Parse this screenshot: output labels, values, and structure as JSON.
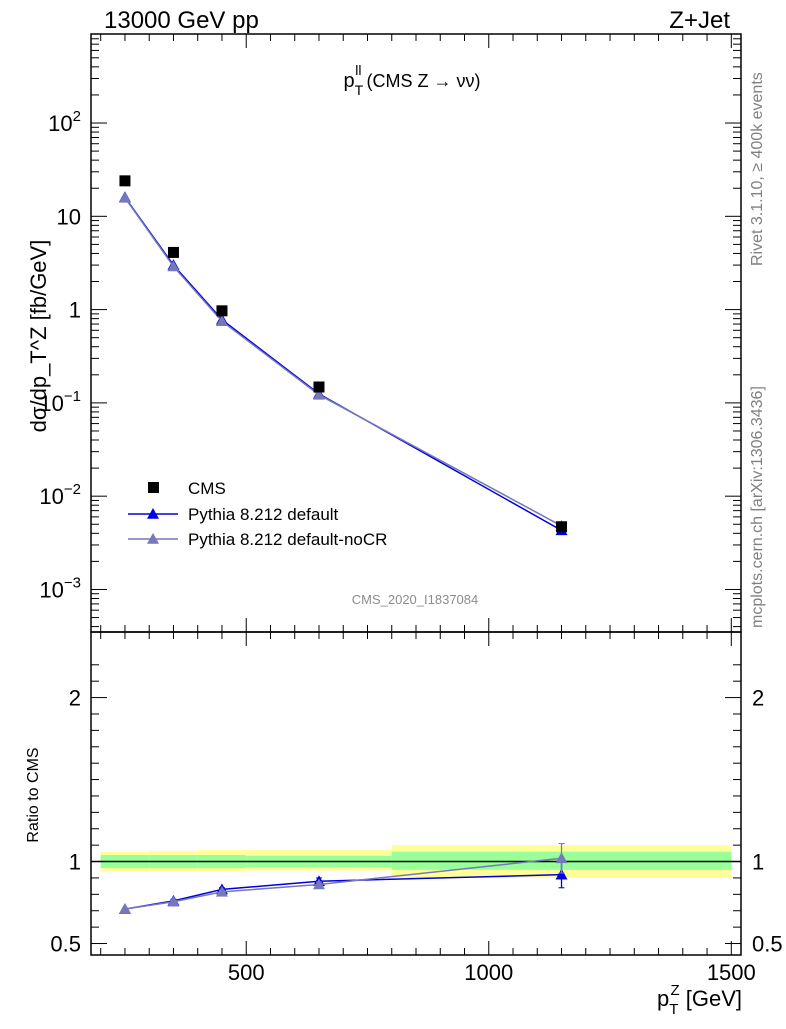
{
  "header": {
    "energy_label": "13000 GeV pp",
    "process_label": "Z+Jet"
  },
  "side_texts": {
    "rivet": "Rivet 3.1.10, ≥ 400k events",
    "mcplots": "mcplots.cern.ch [arXiv:1306.3436]"
  },
  "chart_data": [
    {
      "type": "line",
      "title": "p_T^ll (CMS Z → νν)",
      "title_main": "p",
      "title_sub": "T",
      "title_sup": "ll",
      "title_rest": " (CMS Z → νν)",
      "ylabel": "dσ/dp_T^Z [fb/GeV]",
      "yscale": "log",
      "ylim": [
        0.00035,
        900
      ],
      "xlim": [
        180,
        1520
      ],
      "y_tick_labels": [
        {
          "v": 0.001,
          "base": "10",
          "exp": "−3"
        },
        {
          "v": 0.01,
          "base": "10",
          "exp": "−2"
        },
        {
          "v": 0.1,
          "base": "10",
          "exp": "−1"
        },
        {
          "v": 1,
          "base": "1",
          "exp": ""
        },
        {
          "v": 10,
          "base": "10",
          "exp": ""
        },
        {
          "v": 100,
          "base": "10",
          "exp": "2"
        }
      ],
      "watermark": "CMS_2020_I1837084",
      "legend_position": "bottom-left",
      "series": [
        {
          "name": "CMS",
          "marker": "square",
          "color": "#000000",
          "x": [
            250,
            350,
            450,
            650,
            1150
          ],
          "y": [
            24,
            4.1,
            0.97,
            0.148,
            0.0047
          ]
        },
        {
          "name": "Pythia 8.212 default",
          "marker": "triangle",
          "color": "#0000dd",
          "x": [
            250,
            350,
            450,
            650,
            1150
          ],
          "y": [
            16,
            3.0,
            0.78,
            0.125,
            0.0043
          ]
        },
        {
          "name": "Pythia 8.212 default-noCR",
          "marker": "triangle",
          "color": "#7777bb",
          "x": [
            250,
            350,
            450,
            650,
            1150
          ],
          "y": [
            15.8,
            2.9,
            0.75,
            0.122,
            0.0048
          ]
        }
      ]
    },
    {
      "type": "line",
      "ylabel": "Ratio to CMS",
      "xlabel": "p_T^Z [GeV]",
      "xlabel_main": "p",
      "xlabel_sub": "T",
      "xlabel_sup": "Z",
      "xlabel_rest": " [GeV]",
      "xlim": [
        180,
        1520
      ],
      "ylim": [
        0.43,
        2.4
      ],
      "x_ticks": [
        500,
        1000,
        1500
      ],
      "y_ticks": [
        0.5,
        1,
        2
      ],
      "y_tick_labels": [
        "0.5",
        "1",
        "2"
      ],
      "uncertainty_bands": [
        {
          "x0": 200,
          "x1": 300,
          "stat": [
            0.96,
            1.04
          ],
          "total": [
            0.94,
            1.06
          ]
        },
        {
          "x0": 300,
          "x1": 400,
          "stat": [
            0.96,
            1.04
          ],
          "total": [
            0.94,
            1.065
          ]
        },
        {
          "x0": 400,
          "x1": 500,
          "stat": [
            0.96,
            1.04
          ],
          "total": [
            0.94,
            1.07
          ]
        },
        {
          "x0": 500,
          "x1": 800,
          "stat": [
            0.965,
            1.035
          ],
          "total": [
            0.945,
            1.07
          ]
        },
        {
          "x0": 800,
          "x1": 1500,
          "stat": [
            0.95,
            1.06
          ],
          "total": [
            0.9,
            1.1
          ]
        }
      ],
      "series": [
        {
          "name": "Pythia 8.212 default",
          "color": "#0000dd",
          "x": [
            250,
            350,
            450,
            650,
            1150
          ],
          "y": [
            0.71,
            0.76,
            0.83,
            0.88,
            0.92
          ],
          "err": [
            0.005,
            0.01,
            0.01,
            0.02,
            0.08
          ]
        },
        {
          "name": "Pythia 8.212 default-noCR",
          "color": "#7777bb",
          "x": [
            250,
            350,
            450,
            650,
            1150
          ],
          "y": [
            0.71,
            0.755,
            0.815,
            0.86,
            1.02
          ],
          "err": [
            0.005,
            0.01,
            0.01,
            0.015,
            0.09
          ]
        }
      ]
    }
  ]
}
